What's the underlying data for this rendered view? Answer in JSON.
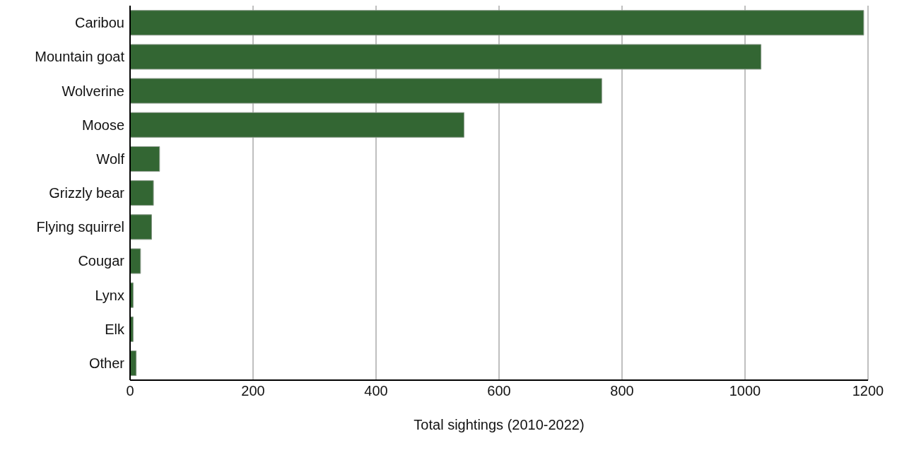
{
  "chart_data": {
    "type": "bar",
    "orientation": "horizontal",
    "xlabel": "Total sightings (2010-2022)",
    "categories": [
      "Caribou",
      "Mountain goat",
      "Wolverine",
      "Moose",
      "Wolf",
      "Grizzly bear",
      "Flying squirrel",
      "Cougar",
      "Lynx",
      "Elk",
      "Other"
    ],
    "values": [
      1193,
      1026,
      767,
      543,
      48,
      38,
      35,
      17,
      5,
      5,
      10
    ],
    "color": "#336633",
    "xlim": [
      0,
      1200
    ],
    "xticks": [
      0,
      200,
      400,
      600,
      800,
      1000,
      1200
    ],
    "grid": "x",
    "legend": false
  }
}
